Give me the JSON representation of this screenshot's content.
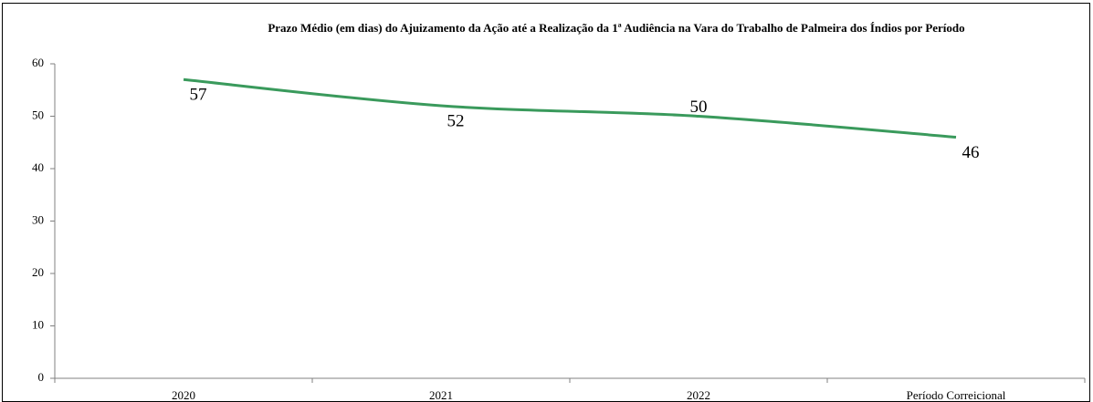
{
  "chart_data": {
    "type": "line",
    "title": "Prazo Médio (em dias) do Ajuizamento da Ação até a Realização da 1ª Audiência na Vara do Trabalho de Palmeira dos Índios por Período",
    "categories": [
      "2020",
      "2021",
      "2022",
      "Período Correicional"
    ],
    "values": [
      57,
      52,
      50,
      46
    ],
    "color": "#3a9a5c",
    "ylim": [
      0,
      60
    ],
    "yticks": [
      0,
      10,
      20,
      30,
      40,
      50,
      60
    ]
  }
}
